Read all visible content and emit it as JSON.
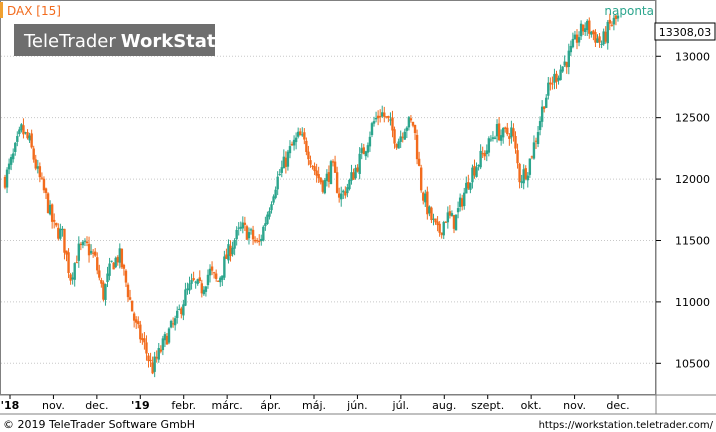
{
  "chart_data": {
    "type": "candlestick",
    "title": "DAX [15]",
    "frequency_label": "naponta",
    "watermark": {
      "brand": "TeleTrader",
      "product": "WorkStation"
    },
    "last_value": 13308.03,
    "last_value_label": "13308,03",
    "ylim": [
      10250,
      13450
    ],
    "y_ticks": [
      10500,
      11000,
      11500,
      12000,
      12500,
      13000
    ],
    "x_tick_labels": [
      "'18",
      "nov.",
      "dec.",
      "'19",
      "febr.",
      "márc.",
      "ápr.",
      "máj.",
      "jún.",
      "júl.",
      "aug.",
      "szept.",
      "okt.",
      "nov.",
      "dec."
    ],
    "grid": true,
    "colors": {
      "up": "#2ca58d",
      "down": "#f26b1d",
      "grid": "#c8c8c8",
      "title": "#f26b1d",
      "frequency": "#2ca58d"
    },
    "series": [
      {
        "x": 0,
        "value": 12000
      },
      {
        "x": 2,
        "value": 12180
      },
      {
        "x": 4,
        "value": 12400
      },
      {
        "x": 6,
        "value": 12300
      },
      {
        "x": 8,
        "value": 12050
      },
      {
        "x": 10,
        "value": 11850
      },
      {
        "x": 12,
        "value": 11600
      },
      {
        "x": 14,
        "value": 11550
      },
      {
        "x": 16,
        "value": 11200
      },
      {
        "x": 18,
        "value": 11420
      },
      {
        "x": 20,
        "value": 11450
      },
      {
        "x": 22,
        "value": 11350
      },
      {
        "x": 24,
        "value": 11050
      },
      {
        "x": 26,
        "value": 11300
      },
      {
        "x": 28,
        "value": 11380
      },
      {
        "x": 30,
        "value": 11100
      },
      {
        "x": 32,
        "value": 10800
      },
      {
        "x": 34,
        "value": 10650
      },
      {
        "x": 36,
        "value": 10450
      },
      {
        "x": 38,
        "value": 10600
      },
      {
        "x": 40,
        "value": 10750
      },
      {
        "x": 42,
        "value": 10850
      },
      {
        "x": 44,
        "value": 11050
      },
      {
        "x": 46,
        "value": 11150
      },
      {
        "x": 48,
        "value": 11100
      },
      {
        "x": 50,
        "value": 11250
      },
      {
        "x": 52,
        "value": 11150
      },
      {
        "x": 54,
        "value": 11350
      },
      {
        "x": 56,
        "value": 11500
      },
      {
        "x": 58,
        "value": 11600
      },
      {
        "x": 60,
        "value": 11550
      },
      {
        "x": 62,
        "value": 11450
      },
      {
        "x": 64,
        "value": 11700
      },
      {
        "x": 66,
        "value": 11950
      },
      {
        "x": 68,
        "value": 12100
      },
      {
        "x": 70,
        "value": 12250
      },
      {
        "x": 72,
        "value": 12350
      },
      {
        "x": 74,
        "value": 12250
      },
      {
        "x": 76,
        "value": 12050
      },
      {
        "x": 78,
        "value": 11950
      },
      {
        "x": 80,
        "value": 12100
      },
      {
        "x": 82,
        "value": 11850
      },
      {
        "x": 84,
        "value": 11950
      },
      {
        "x": 86,
        "value": 12100
      },
      {
        "x": 88,
        "value": 12250
      },
      {
        "x": 90,
        "value": 12450
      },
      {
        "x": 92,
        "value": 12550
      },
      {
        "x": 94,
        "value": 12450
      },
      {
        "x": 96,
        "value": 12300
      },
      {
        "x": 98,
        "value": 12450
      },
      {
        "x": 100,
        "value": 12450
      },
      {
        "x": 102,
        "value": 11900
      },
      {
        "x": 104,
        "value": 11700
      },
      {
        "x": 106,
        "value": 11550
      },
      {
        "x": 108,
        "value": 11700
      },
      {
        "x": 110,
        "value": 11650
      },
      {
        "x": 112,
        "value": 11850
      },
      {
        "x": 114,
        "value": 12050
      },
      {
        "x": 116,
        "value": 12150
      },
      {
        "x": 118,
        "value": 12250
      },
      {
        "x": 120,
        "value": 12400
      },
      {
        "x": 122,
        "value": 12350
      },
      {
        "x": 124,
        "value": 12400
      },
      {
        "x": 126,
        "value": 12000
      },
      {
        "x": 128,
        "value": 12100
      },
      {
        "x": 130,
        "value": 12350
      },
      {
        "x": 132,
        "value": 12650
      },
      {
        "x": 134,
        "value": 12800
      },
      {
        "x": 136,
        "value": 12900
      },
      {
        "x": 138,
        "value": 13000
      },
      {
        "x": 140,
        "value": 13150
      },
      {
        "x": 142,
        "value": 13250
      },
      {
        "x": 144,
        "value": 13180
      },
      {
        "x": 146,
        "value": 13100
      },
      {
        "x": 148,
        "value": 13250
      },
      {
        "x": 150,
        "value": 13308
      }
    ]
  },
  "footer": {
    "copyright": "© 2019 TeleTrader Software GmbH",
    "url": "https://workstation.teletrader.com/"
  }
}
